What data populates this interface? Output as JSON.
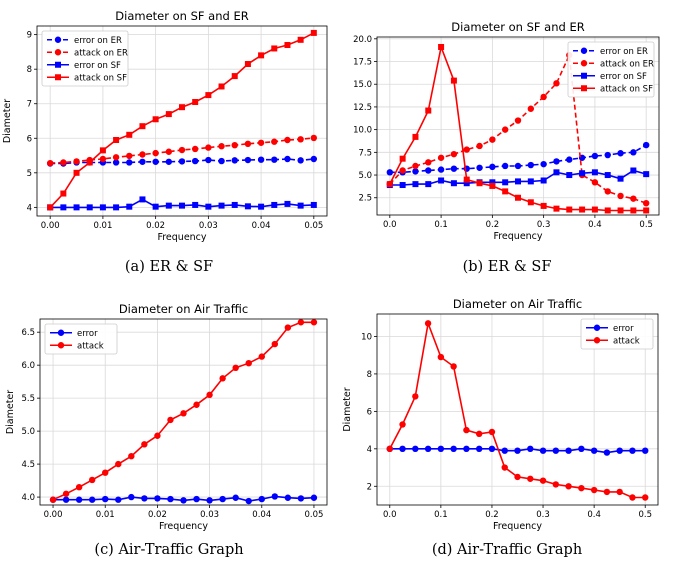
{
  "chart_data": [
    {
      "type": "line",
      "title": "Diameter on SF and ER",
      "xlabel": "Frequency",
      "ylabel": "Diameter",
      "xlim": [
        -0.0025,
        0.0525
      ],
      "ylim": [
        3.75,
        9.25
      ],
      "xticks": [
        "0.00",
        "0.01",
        "0.02",
        "0.03",
        "0.04",
        "0.05"
      ],
      "yticks": [
        "4",
        "5",
        "6",
        "7",
        "8",
        "9"
      ],
      "grid": true,
      "legend": "top-left",
      "x": [
        0,
        0.0025,
        0.005,
        0.0075,
        0.01,
        0.0125,
        0.015,
        0.0175,
        0.02,
        0.0225,
        0.025,
        0.0275,
        0.03,
        0.0325,
        0.035,
        0.0375,
        0.04,
        0.0425,
        0.045,
        0.0475,
        0.05
      ],
      "series": [
        {
          "name": "error on ER",
          "color": "#0000ff",
          "marker": "circle",
          "dash": true,
          "values": [
            5.27,
            5.27,
            5.3,
            5.3,
            5.3,
            5.3,
            5.3,
            5.32,
            5.32,
            5.32,
            5.33,
            5.34,
            5.37,
            5.34,
            5.36,
            5.37,
            5.38,
            5.38,
            5.4,
            5.36,
            5.4
          ]
        },
        {
          "name": "attack on ER",
          "color": "#ff0000",
          "marker": "circle",
          "dash": true,
          "values": [
            5.28,
            5.3,
            5.33,
            5.37,
            5.4,
            5.45,
            5.49,
            5.53,
            5.57,
            5.61,
            5.66,
            5.69,
            5.73,
            5.77,
            5.8,
            5.84,
            5.87,
            5.9,
            5.95,
            5.97,
            6.01
          ]
        },
        {
          "name": "error on SF",
          "color": "#0000ff",
          "marker": "square",
          "dash": false,
          "values": [
            4.0,
            4.0,
            4.0,
            4.0,
            4.0,
            4.0,
            4.02,
            4.23,
            4.02,
            4.05,
            4.05,
            4.07,
            4.02,
            4.05,
            4.07,
            4.03,
            4.02,
            4.07,
            4.1,
            4.05,
            4.07
          ]
        },
        {
          "name": "attack on SF",
          "color": "#ff0000",
          "marker": "square",
          "dash": false,
          "values": [
            4.0,
            4.4,
            5.0,
            5.3,
            5.65,
            5.95,
            6.1,
            6.35,
            6.55,
            6.7,
            6.9,
            7.05,
            7.25,
            7.5,
            7.8,
            8.15,
            8.4,
            8.6,
            8.7,
            8.85,
            9.05
          ]
        }
      ]
    },
    {
      "type": "line",
      "title": "Diameter on SF and ER",
      "xlabel": "Frequency",
      "ylabel": "",
      "xlim": [
        -0.025,
        0.525
      ],
      "ylim": [
        0.6,
        20.2
      ],
      "xticks": [
        "0.0",
        "0.1",
        "0.2",
        "0.3",
        "0.4",
        "0.5"
      ],
      "yticks": [
        "2.5",
        "5.0",
        "7.5",
        "10.0",
        "12.5",
        "15.0",
        "17.5",
        "20.0"
      ],
      "grid": true,
      "legend": "top-right",
      "x": [
        0,
        0.025,
        0.05,
        0.075,
        0.1,
        0.125,
        0.15,
        0.175,
        0.2,
        0.225,
        0.25,
        0.275,
        0.3,
        0.325,
        0.35,
        0.375,
        0.4,
        0.425,
        0.45,
        0.475,
        0.5
      ],
      "series": [
        {
          "name": "error on ER",
          "color": "#0000ff",
          "marker": "circle",
          "dash": true,
          "values": [
            5.3,
            5.3,
            5.4,
            5.5,
            5.6,
            5.7,
            5.7,
            5.8,
            5.9,
            6.0,
            6.0,
            6.1,
            6.2,
            6.5,
            6.7,
            6.9,
            7.1,
            7.2,
            7.4,
            7.5,
            8.3
          ]
        },
        {
          "name": "attack on ER",
          "color": "#ff0000",
          "marker": "circle",
          "dash": true,
          "values": [
            4.0,
            5.5,
            6.0,
            6.4,
            6.9,
            7.3,
            7.8,
            8.2,
            8.9,
            10.0,
            11.0,
            12.3,
            13.6,
            15.1,
            18.2,
            5.0,
            4.2,
            3.2,
            2.7,
            2.4,
            1.9
          ]
        },
        {
          "name": "error on SF",
          "color": "#0000ff",
          "marker": "square",
          "dash": false,
          "values": [
            3.9,
            3.9,
            4.0,
            4.0,
            4.4,
            4.1,
            4.1,
            4.2,
            4.2,
            4.2,
            4.3,
            4.3,
            4.4,
            5.3,
            5.0,
            5.2,
            5.3,
            5.0,
            4.6,
            5.5,
            5.1
          ]
        },
        {
          "name": "attack on SF",
          "color": "#ff0000",
          "marker": "square",
          "dash": false,
          "values": [
            4.0,
            6.8,
            9.2,
            12.1,
            19.1,
            15.4,
            4.5,
            4.1,
            3.8,
            3.2,
            2.5,
            2.0,
            1.6,
            1.3,
            1.2,
            1.2,
            1.2,
            1.1,
            1.1,
            1.1,
            1.1
          ]
        }
      ]
    },
    {
      "type": "line",
      "title": "Diameter on Air Traffic",
      "xlabel": "Frequency",
      "ylabel": "Diameter",
      "xlim": [
        -0.0025,
        0.0525
      ],
      "ylim": [
        3.88,
        6.7
      ],
      "xticks": [
        "0.00",
        "0.01",
        "0.02",
        "0.03",
        "0.04",
        "0.05"
      ],
      "yticks": [
        "4.0",
        "4.5",
        "5.0",
        "5.5",
        "6.0",
        "6.5"
      ],
      "grid": true,
      "legend": "top-left",
      "x": [
        0,
        0.0025,
        0.005,
        0.0075,
        0.01,
        0.0125,
        0.015,
        0.0175,
        0.02,
        0.0225,
        0.025,
        0.0275,
        0.03,
        0.0325,
        0.035,
        0.0375,
        0.04,
        0.0425,
        0.045,
        0.0475,
        0.05
      ],
      "series": [
        {
          "name": "error",
          "color": "#0000ff",
          "marker": "circle",
          "dash": false,
          "values": [
            3.96,
            3.96,
            3.96,
            3.96,
            3.97,
            3.96,
            4.0,
            3.98,
            3.98,
            3.97,
            3.95,
            3.97,
            3.95,
            3.97,
            3.99,
            3.94,
            3.97,
            4.01,
            3.99,
            3.98,
            3.99
          ]
        },
        {
          "name": "attack",
          "color": "#ff0000",
          "marker": "circle",
          "dash": false,
          "values": [
            3.96,
            4.05,
            4.15,
            4.26,
            4.37,
            4.5,
            4.62,
            4.8,
            4.93,
            5.17,
            5.27,
            5.4,
            5.55,
            5.8,
            5.96,
            6.03,
            6.13,
            6.32,
            6.57,
            6.65,
            6.65
          ]
        }
      ]
    },
    {
      "type": "line",
      "title": "Diameter on Air Traffic",
      "xlabel": "Frequency",
      "ylabel": "Diameter",
      "xlim": [
        -0.025,
        0.525
      ],
      "ylim": [
        1.0,
        11.2
      ],
      "xticks": [
        "0.0",
        "0.1",
        "0.2",
        "0.3",
        "0.4",
        "0.5"
      ],
      "yticks": [
        "2",
        "4",
        "6",
        "8",
        "10"
      ],
      "grid": true,
      "legend": "top-right",
      "x": [
        0,
        0.025,
        0.05,
        0.075,
        0.1,
        0.125,
        0.15,
        0.175,
        0.2,
        0.225,
        0.25,
        0.275,
        0.3,
        0.325,
        0.35,
        0.375,
        0.4,
        0.425,
        0.45,
        0.475,
        0.5
      ],
      "series": [
        {
          "name": "error",
          "color": "#0000ff",
          "marker": "circle",
          "dash": false,
          "values": [
            4.0,
            4.0,
            4.0,
            4.0,
            4.0,
            4.0,
            4.0,
            4.0,
            4.0,
            3.9,
            3.9,
            4.0,
            3.9,
            3.9,
            3.9,
            4.0,
            3.9,
            3.8,
            3.9,
            3.9,
            3.9
          ]
        },
        {
          "name": "attack",
          "color": "#ff0000",
          "marker": "circle",
          "dash": false,
          "values": [
            4.0,
            5.3,
            6.8,
            10.7,
            8.9,
            8.4,
            5.0,
            4.8,
            4.9,
            3.0,
            2.5,
            2.4,
            2.3,
            2.1,
            2.0,
            1.9,
            1.8,
            1.7,
            1.7,
            1.4,
            1.4
          ]
        }
      ]
    }
  ],
  "captions": [
    "(a) ER & SF",
    "(b) ER & SF",
    "(c) Air-Traffic Graph",
    "(d) Air-Traffic Graph"
  ]
}
